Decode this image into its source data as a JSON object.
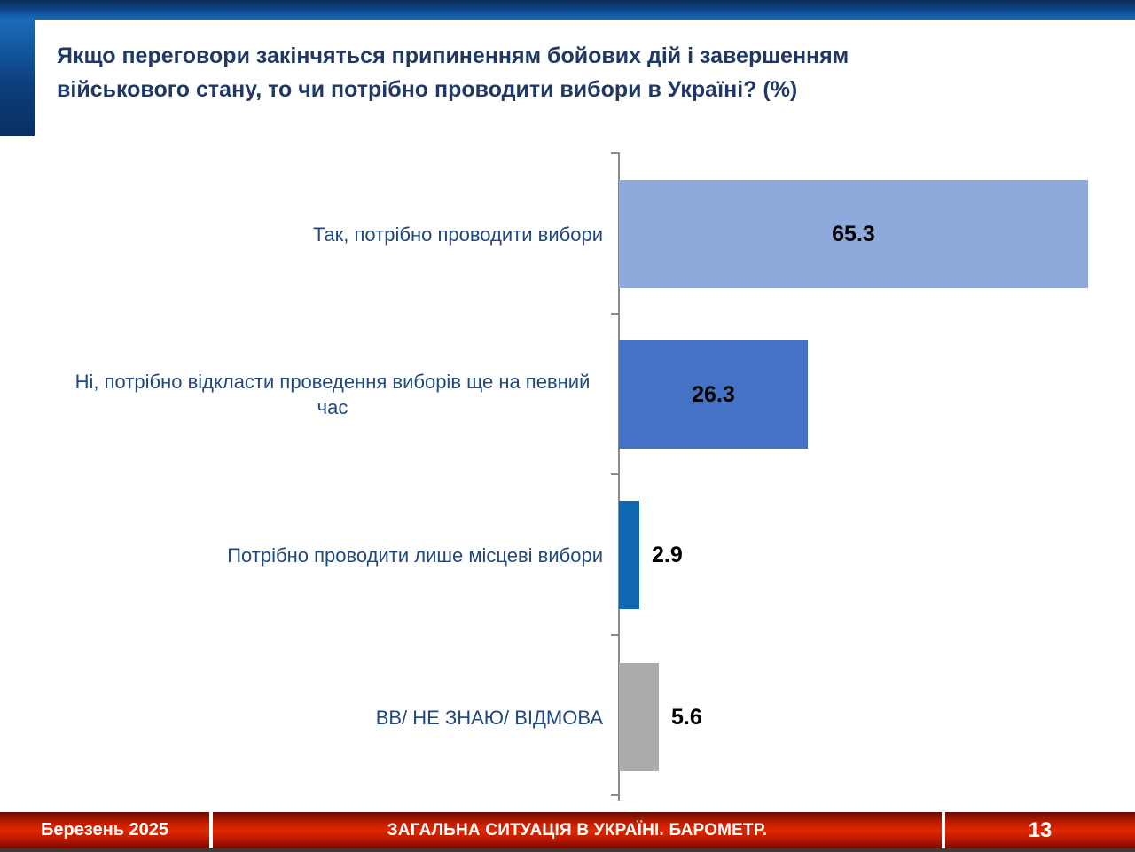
{
  "header": {
    "title_lines": [
      "Якщо переговори закінчяться припиненням бойових дій і завершенням",
      "військового стану, то чи потрібно проводити вибори в Україні? (%)"
    ],
    "title_color": "#1f3864"
  },
  "chart_data": {
    "type": "bar",
    "orientation": "horizontal",
    "title": "Якщо переговори закінчяться припиненням бойових дій і завершенням військового стану, то чи потрібно проводити вибори в Україні? (%)",
    "categories": [
      "Так, потрібно проводити вибори",
      "Ні, потрібно відкласти проведення виборів ще на певний час",
      "Потрібно проводити лише місцеві вибори",
      "ВВ/ НЕ ЗНАЮ/ ВІДМОВА"
    ],
    "values": [
      65.3,
      26.3,
      2.9,
      5.6
    ],
    "bar_colors": [
      "#8ea9dc",
      "#4472c4",
      "#1268b0",
      "#ababab"
    ],
    "category_label_color": "#1f497d",
    "value_label_color": "#000000",
    "xlim": [
      0,
      80
    ],
    "grid": false,
    "legend": false,
    "value_label_position": [
      "inside",
      "inside",
      "outside",
      "outside"
    ]
  },
  "footer": {
    "date": "Березень 2025",
    "section_title": "ЗАГАЛЬНА СИТУАЦІЯ В УКРАЇНІ. БАРОМЕТР.",
    "page_number": "13",
    "band_color": "#cc1a00",
    "text_color": "#ffffff"
  }
}
